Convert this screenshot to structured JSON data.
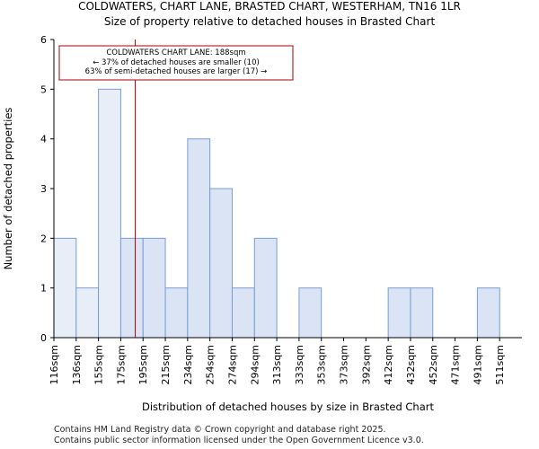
{
  "chart_data": {
    "type": "bar",
    "title": "COLDWATERS, CHART LANE, BRASTED CHART, WESTERHAM, TN16 1LR",
    "subtitle": "Size of property relative to detached houses in Brasted Chart",
    "xlabel": "Distribution of detached houses by size in Brasted Chart",
    "ylabel": "Number of detached properties",
    "categories": [
      "116sqm",
      "136sqm",
      "155sqm",
      "175sqm",
      "195sqm",
      "215sqm",
      "234sqm",
      "254sqm",
      "274sqm",
      "294sqm",
      "313sqm",
      "333sqm",
      "353sqm",
      "373sqm",
      "392sqm",
      "412sqm",
      "432sqm",
      "452sqm",
      "471sqm",
      "491sqm",
      "511sqm"
    ],
    "values": [
      2,
      1,
      5,
      2,
      2,
      1,
      4,
      3,
      1,
      2,
      0,
      1,
      0,
      0,
      0,
      1,
      1,
      0,
      0,
      1,
      0
    ],
    "ylim": [
      0,
      6
    ],
    "yticks": [
      0,
      1,
      2,
      3,
      4,
      5,
      6
    ],
    "grid": false,
    "bar_fill": "#dae4f4",
    "bar_fill_highlight": "#e8eef8",
    "bar_edge": "#7a9cd1",
    "marker": {
      "value_sqm": 188,
      "color": "#aa0000",
      "lines": [
        "COLDWATERS CHART LANE: 188sqm",
        "← 37% of detached houses are smaller (10)",
        "63% of semi-detached houses are larger (17) →"
      ]
    }
  },
  "footer": {
    "line1": "Contains HM Land Registry data © Crown copyright and database right 2025.",
    "line2": "Contains public sector information licensed under the Open Government Licence v3.0."
  }
}
